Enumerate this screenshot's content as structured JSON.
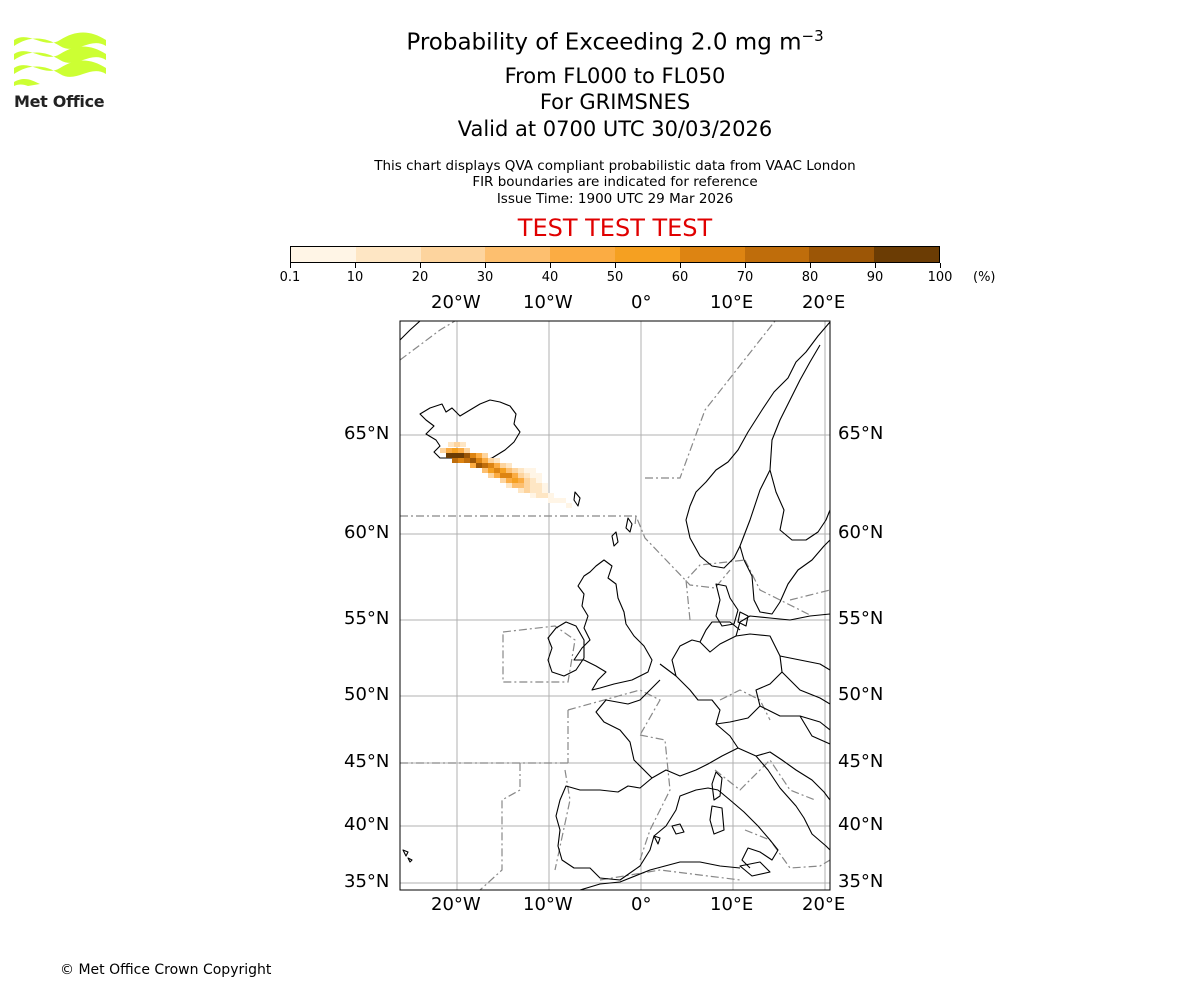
{
  "header": {
    "title_prefix": "Probability of Exceeding 2.0 mg m",
    "title_exponent": "−3",
    "line1": "From FL000 to FL050",
    "line2": "For GRIMSNES",
    "line3": "Valid at 0700 UTC 30/03/2026",
    "note1": "This chart displays QVA compliant probabilistic data from VAAC London",
    "note2": "FIR boundaries are indicated for reference",
    "note3": "Issue Time: 1900 UTC 29 Mar 2026",
    "test_banner": "TEST TEST TEST"
  },
  "logo": {
    "text": "Met Office",
    "color": "#ccff33"
  },
  "colorbar": {
    "ticks": [
      "0.1",
      "10",
      "20",
      "30",
      "40",
      "50",
      "60",
      "70",
      "80",
      "90",
      "100"
    ],
    "unit": "(%)",
    "colors": [
      "#fff5e6",
      "#fee6c4",
      "#fdd49e",
      "#fdbf6f",
      "#fbac43",
      "#f5a021",
      "#dd8412",
      "#bf6d0b",
      "#9c5606",
      "#6b3c04"
    ]
  },
  "map": {
    "lon_labels": [
      "20°W",
      "10°W",
      "0°",
      "10°E",
      "20°E"
    ],
    "lat_labels": [
      "65°N",
      "60°N",
      "55°N",
      "50°N",
      "45°N",
      "40°N",
      "35°N"
    ]
  },
  "footer": {
    "copyright": "© Met Office Crown Copyright"
  }
}
